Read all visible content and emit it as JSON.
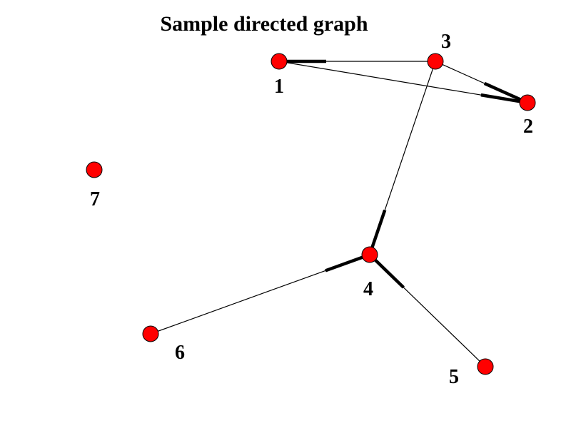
{
  "title": "Sample directed graph",
  "colors": {
    "node_fill": "#ff0000",
    "edge": "#000000",
    "text": "#000000"
  },
  "nodes": [
    {
      "id": "1",
      "label": "1"
    },
    {
      "id": "2",
      "label": "2"
    },
    {
      "id": "3",
      "label": "3"
    },
    {
      "id": "4",
      "label": "4"
    },
    {
      "id": "5",
      "label": "5"
    },
    {
      "id": "6",
      "label": "6"
    },
    {
      "id": "7",
      "label": "7"
    }
  ],
  "edges": [
    {
      "from": "3",
      "to": "1"
    },
    {
      "from": "1",
      "to": "2"
    },
    {
      "from": "3",
      "to": "2"
    },
    {
      "from": "3",
      "to": "4"
    },
    {
      "from": "6",
      "to": "4"
    },
    {
      "from": "5",
      "to": "4"
    }
  ]
}
